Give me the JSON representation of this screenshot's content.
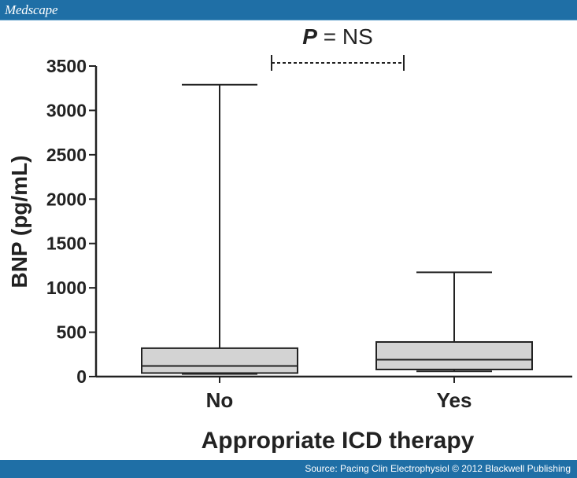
{
  "header": {
    "brand": "Medscape"
  },
  "footer": {
    "source": "Source: Pacing Clin Electrophysiol © 2012 Blackwell Publishing"
  },
  "colors": {
    "header_bg": "#1f6fa6",
    "box_fill": "#d3d3d3",
    "stroke": "#222222"
  },
  "chart_data": {
    "type": "box",
    "title": "",
    "xlabel": "Appropriate ICD therapy",
    "ylabel": "BNP (pg/mL)",
    "ylim": [
      0,
      3500
    ],
    "yticks": [
      0,
      500,
      1000,
      1500,
      2000,
      2500,
      3000,
      3500
    ],
    "categories": [
      "No",
      "Yes"
    ],
    "boxes": [
      {
        "category": "No",
        "min": 30,
        "q1": 40,
        "median": 120,
        "q3": 320,
        "max": 3290
      },
      {
        "category": "Yes",
        "min": 60,
        "q1": 80,
        "median": 190,
        "q3": 390,
        "max": 1175
      }
    ],
    "annotation": {
      "p_label": "P",
      "p_text": " = NS"
    }
  }
}
